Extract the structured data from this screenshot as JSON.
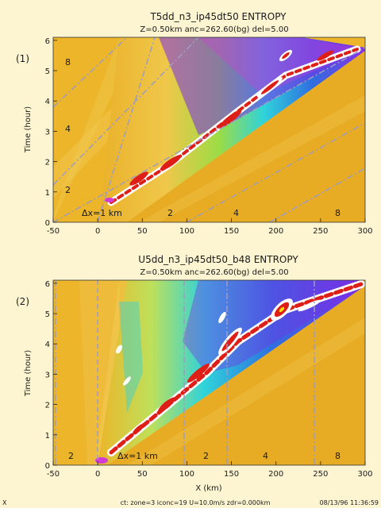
{
  "chart_data": [
    {
      "type": "heatmap",
      "panel_label": "(1)",
      "title": "T5dd_n3_ip45dt50   ENTROPY",
      "subtitle": "Z=0.50km  anc=262.60(bg)  del=5.00",
      "xlabel": "",
      "ylabel": "Time (hour)",
      "xlim": [
        -50,
        300
      ],
      "ylim": [
        0,
        6.1
      ],
      "xticks": [
        -50,
        0,
        50,
        100,
        150,
        200,
        250,
        300
      ],
      "yticks": [
        0,
        1,
        2,
        3,
        4,
        5,
        6
      ],
      "annotations": [
        {
          "text": "8",
          "x": -35,
          "y": 5.3
        },
        {
          "text": "4",
          "x": -35,
          "y": 3.2
        },
        {
          "text": "2",
          "x": -35,
          "y": 1.0
        },
        {
          "text": "Δx=1 km",
          "x": 5,
          "y": 0.22
        },
        {
          "text": "2",
          "x": 80,
          "y": 0.22
        },
        {
          "text": "4",
          "x": 153,
          "y": 0.22
        },
        {
          "text": "8",
          "x": 268,
          "y": 0.22
        }
      ]
    },
    {
      "type": "heatmap",
      "panel_label": "(2)",
      "title": "U5dd_n3_ip45dt50_b48   ENTROPY",
      "subtitle": "Z=0.50km  anc=262.60(bg)  del=5.00",
      "xlabel": "X  (km)",
      "ylabel": "Time (hour)",
      "xlim": [
        -50,
        300
      ],
      "ylim": [
        0,
        6.1
      ],
      "xticks": [
        -50,
        0,
        50,
        100,
        150,
        200,
        250,
        300
      ],
      "yticks": [
        0,
        1,
        2,
        3,
        4,
        5,
        6
      ],
      "annotations": [
        {
          "text": "2",
          "x": -35,
          "y": 0.22
        },
        {
          "text": "Δx=1 km",
          "x": 30,
          "y": 0.22
        },
        {
          "text": "2",
          "x": 110,
          "y": 0.22
        },
        {
          "text": "4",
          "x": 183,
          "y": 0.22
        },
        {
          "text": "8",
          "x": 268,
          "y": 0.22
        }
      ]
    }
  ],
  "footer": {
    "left": "X",
    "mid": "ct: zone=3 iconc=19  U=10.0m/s  zdr=0.000km",
    "right": "08/13/96 11:36:59"
  },
  "colors": {
    "background": "#fdf5d2",
    "field_base": "#ecb52a",
    "field_dark": "#e0a020",
    "field_light": "#f2cf5a",
    "cyan": "#33d6dc",
    "blue": "#2f6fe0",
    "purple": "#7a2ee6",
    "magenta": "#d23cd6",
    "red": "#dd1f18",
    "white": "#ffffff",
    "green": "#7fd640",
    "guide": "#a6a6c8"
  }
}
